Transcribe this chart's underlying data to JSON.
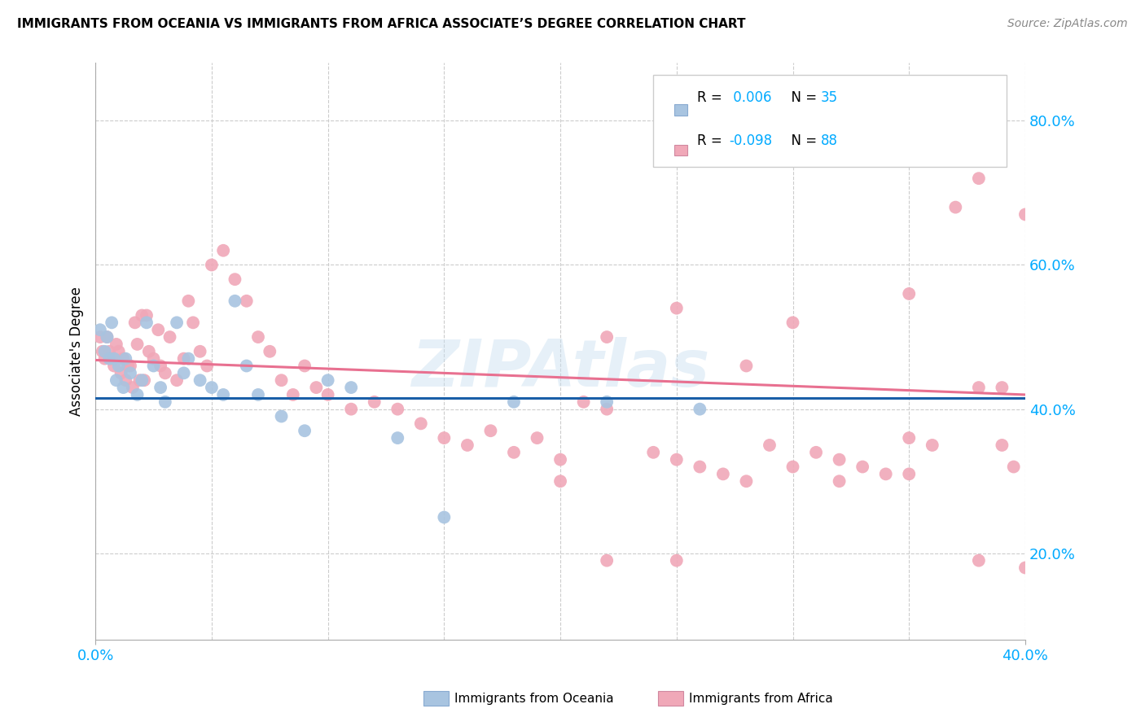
{
  "title": "IMMIGRANTS FROM OCEANIA VS IMMIGRANTS FROM AFRICA ASSOCIATE’S DEGREE CORRELATION CHART",
  "source": "Source: ZipAtlas.com",
  "ylabel": "Associate's Degree",
  "xlim": [
    0.0,
    0.4
  ],
  "ylim": [
    0.08,
    0.88
  ],
  "oceania_color": "#a8c4e0",
  "africa_color": "#f0a8b8",
  "oceania_line_color": "#1a5fa8",
  "africa_line_color": "#e87090",
  "watermark": "ZIPAtlas",
  "oceania_R": 0.006,
  "oceania_N": 35,
  "africa_R": -0.098,
  "africa_N": 88,
  "oceania_scatter_x": [
    0.002,
    0.004,
    0.005,
    0.006,
    0.007,
    0.008,
    0.009,
    0.01,
    0.012,
    0.013,
    0.015,
    0.018,
    0.02,
    0.022,
    0.025,
    0.028,
    0.03,
    0.035,
    0.038,
    0.04,
    0.045,
    0.05,
    0.055,
    0.06,
    0.065,
    0.07,
    0.08,
    0.09,
    0.1,
    0.11,
    0.13,
    0.15,
    0.18,
    0.22,
    0.26
  ],
  "oceania_scatter_y": [
    0.51,
    0.48,
    0.5,
    0.47,
    0.52,
    0.47,
    0.44,
    0.46,
    0.43,
    0.47,
    0.45,
    0.42,
    0.44,
    0.52,
    0.46,
    0.43,
    0.41,
    0.52,
    0.45,
    0.47,
    0.44,
    0.43,
    0.42,
    0.55,
    0.46,
    0.42,
    0.39,
    0.37,
    0.44,
    0.43,
    0.36,
    0.25,
    0.41,
    0.41,
    0.4
  ],
  "africa_scatter_x": [
    0.002,
    0.003,
    0.004,
    0.005,
    0.006,
    0.007,
    0.008,
    0.009,
    0.01,
    0.011,
    0.012,
    0.013,
    0.014,
    0.015,
    0.016,
    0.017,
    0.018,
    0.019,
    0.02,
    0.021,
    0.022,
    0.023,
    0.025,
    0.027,
    0.028,
    0.03,
    0.032,
    0.035,
    0.038,
    0.04,
    0.042,
    0.045,
    0.048,
    0.05,
    0.055,
    0.06,
    0.065,
    0.07,
    0.075,
    0.08,
    0.085,
    0.09,
    0.095,
    0.1,
    0.11,
    0.12,
    0.13,
    0.14,
    0.15,
    0.16,
    0.17,
    0.18,
    0.19,
    0.2,
    0.21,
    0.22,
    0.24,
    0.25,
    0.26,
    0.27,
    0.28,
    0.29,
    0.3,
    0.31,
    0.32,
    0.33,
    0.34,
    0.35,
    0.36,
    0.37,
    0.38,
    0.39,
    0.22,
    0.25,
    0.28,
    0.3,
    0.35,
    0.38,
    0.2,
    0.22,
    0.25,
    0.32,
    0.35,
    0.38,
    0.4,
    0.4,
    0.395,
    0.39
  ],
  "africa_scatter_y": [
    0.5,
    0.48,
    0.47,
    0.5,
    0.48,
    0.47,
    0.46,
    0.49,
    0.48,
    0.45,
    0.47,
    0.44,
    0.46,
    0.46,
    0.43,
    0.52,
    0.49,
    0.44,
    0.53,
    0.44,
    0.53,
    0.48,
    0.47,
    0.51,
    0.46,
    0.45,
    0.5,
    0.44,
    0.47,
    0.55,
    0.52,
    0.48,
    0.46,
    0.6,
    0.62,
    0.58,
    0.55,
    0.5,
    0.48,
    0.44,
    0.42,
    0.46,
    0.43,
    0.42,
    0.4,
    0.41,
    0.4,
    0.38,
    0.36,
    0.35,
    0.37,
    0.34,
    0.36,
    0.33,
    0.41,
    0.4,
    0.34,
    0.33,
    0.32,
    0.31,
    0.3,
    0.35,
    0.32,
    0.34,
    0.33,
    0.32,
    0.31,
    0.36,
    0.35,
    0.68,
    0.72,
    0.43,
    0.5,
    0.54,
    0.46,
    0.52,
    0.56,
    0.43,
    0.3,
    0.19,
    0.19,
    0.3,
    0.31,
    0.19,
    0.18,
    0.67,
    0.32,
    0.35
  ]
}
